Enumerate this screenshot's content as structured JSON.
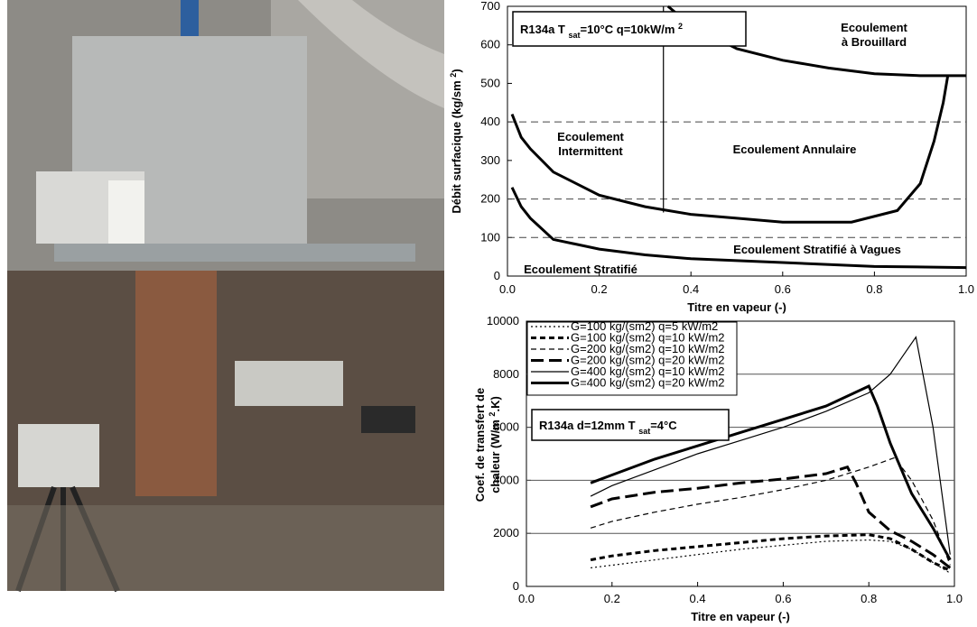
{
  "chart_data": [
    {
      "type": "line",
      "title": [
        "R134a T ",
        "sat",
        "=10°C q=10kW/m ",
        "2"
      ],
      "x_label": "Titre en vapeur (-)",
      "y_label": [
        "Débit surfacique (kg/sm ",
        "2",
        ")"
      ],
      "regions": [
        [
          "Ecoulement",
          "à Brouillard"
        ],
        [
          "Ecoulement",
          "Intermittent"
        ],
        [
          "Ecoulement Annulaire"
        ],
        [
          "Ecoulement Stratifié à Vagues"
        ],
        [
          "Ecoulement  Stratifié"
        ]
      ],
      "xlim": [
        0,
        1
      ],
      "ylim": [
        0,
        700
      ],
      "xticks": [
        {
          "value": 0,
          "label": "0.0"
        },
        0.2,
        0.4,
        0.6,
        0.8,
        {
          "value": 1,
          "label": "1.0"
        }
      ],
      "yticks": [
        0,
        100,
        200,
        300,
        400,
        500,
        600,
        700
      ],
      "hlines": [
        100,
        200,
        400
      ],
      "series": [
        {
          "color": "#000000",
          "linestyle": "solid",
          "weight": "thick",
          "x": [
            0.01,
            0.03,
            0.05,
            0.1,
            0.2,
            0.3,
            0.4,
            0.6,
            0.8,
            1.0
          ],
          "values": [
            230,
            180,
            150,
            95,
            70,
            55,
            45,
            35,
            25,
            22
          ]
        },
        {
          "color": "#000000",
          "linestyle": "solid",
          "weight": "thick",
          "x": [
            0.01,
            0.03,
            0.05,
            0.1,
            0.2,
            0.3,
            0.4,
            0.5,
            0.6,
            0.75,
            0.85,
            0.9,
            0.93,
            0.95,
            0.96
          ],
          "values": [
            420,
            360,
            330,
            270,
            210,
            180,
            160,
            150,
            140,
            140,
            170,
            240,
            350,
            450,
            520
          ]
        },
        {
          "color": "#000000",
          "linestyle": "solid",
          "weight": "thin",
          "x": [
            0.34,
            0.34
          ],
          "values": [
            165,
            700
          ]
        },
        {
          "color": "#000000",
          "linestyle": "solid",
          "weight": "thick",
          "x": [
            0.35,
            0.4,
            0.5,
            0.6,
            0.7,
            0.8,
            0.9,
            1.0
          ],
          "values": [
            700,
            650,
            590,
            560,
            540,
            525,
            520,
            520
          ]
        }
      ]
    },
    {
      "type": "line",
      "title": [
        "R134a d=12mm T ",
        "sat",
        "=4°C"
      ],
      "x_label": "Titre en vapeur (-)",
      "y_label": [
        [
          "Coef. de transfert de"
        ],
        [
          "chaleur (W/m ",
          "2",
          ".K)"
        ]
      ],
      "xlim": [
        0,
        1
      ],
      "ylim": [
        0,
        10000
      ],
      "xticks": [
        {
          "value": 0,
          "label": "0.0"
        },
        0.2,
        0.4,
        0.6,
        0.8,
        {
          "value": 1,
          "label": "1.0"
        }
      ],
      "yticks": [
        0,
        2000,
        4000,
        6000,
        8000,
        10000
      ],
      "grid": true,
      "legend": "upper left",
      "series": [
        {
          "name": "G=100 kg/(sm2)  q=5 kW/m2",
          "color": "#000000",
          "linestyle": "dotted",
          "weight": "thin",
          "x": [
            0.15,
            0.2,
            0.3,
            0.4,
            0.5,
            0.6,
            0.7,
            0.8,
            0.85,
            0.9,
            0.95,
            0.99
          ],
          "values": [
            700,
            800,
            1000,
            1200,
            1400,
            1550,
            1700,
            1750,
            1700,
            1400,
            900,
            500
          ]
        },
        {
          "name": "G=100 kg/(sm2)  q=10 kW/m2",
          "color": "#000000",
          "linestyle": "dashed",
          "weight": "thick",
          "x": [
            0.15,
            0.2,
            0.3,
            0.4,
            0.5,
            0.6,
            0.7,
            0.8,
            0.85,
            0.9,
            0.95,
            0.99
          ],
          "values": [
            1000,
            1150,
            1350,
            1500,
            1650,
            1800,
            1900,
            1950,
            1800,
            1400,
            900,
            600
          ]
        },
        {
          "name": "G=200 kg/(sm2)  q=10 kW/m2",
          "color": "#000000",
          "linestyle": "dashed",
          "weight": "thin",
          "x": [
            0.15,
            0.2,
            0.3,
            0.4,
            0.5,
            0.6,
            0.7,
            0.8,
            0.86,
            0.9,
            0.95,
            0.99
          ],
          "values": [
            2200,
            2450,
            2800,
            3100,
            3350,
            3650,
            4000,
            4500,
            4850,
            4000,
            2500,
            800
          ]
        },
        {
          "name": "G=200 kg/(sm2)  q=20 kW/m2",
          "color": "#000000",
          "linestyle": "longdash",
          "weight": "thick",
          "x": [
            0.15,
            0.2,
            0.3,
            0.4,
            0.5,
            0.6,
            0.7,
            0.75,
            0.77,
            0.8,
            0.85,
            0.9,
            0.95,
            0.99
          ],
          "values": [
            3000,
            3300,
            3550,
            3700,
            3900,
            4050,
            4250,
            4500,
            3900,
            2800,
            2100,
            1700,
            1200,
            700
          ]
        },
        {
          "name": "G=400 kg/(sm2)  q=10 kW/m2",
          "color": "#000000",
          "linestyle": "solid",
          "weight": "thin",
          "x": [
            0.15,
            0.2,
            0.3,
            0.4,
            0.5,
            0.6,
            0.7,
            0.8,
            0.85,
            0.88,
            0.91,
            0.95,
            0.99
          ],
          "values": [
            3400,
            3800,
            4400,
            5000,
            5500,
            6000,
            6600,
            7300,
            8000,
            8700,
            9400,
            6000,
            1200
          ]
        },
        {
          "name": "G=400 kg/(sm2)  q=20 kW/m2",
          "color": "#000000",
          "linestyle": "solid",
          "weight": "thick",
          "x": [
            0.15,
            0.2,
            0.3,
            0.4,
            0.5,
            0.6,
            0.7,
            0.8,
            0.82,
            0.85,
            0.9,
            0.95,
            0.99
          ],
          "values": [
            3900,
            4200,
            4800,
            5300,
            5800,
            6300,
            6800,
            7550,
            6800,
            5400,
            3500,
            2200,
            1000
          ]
        }
      ]
    }
  ]
}
